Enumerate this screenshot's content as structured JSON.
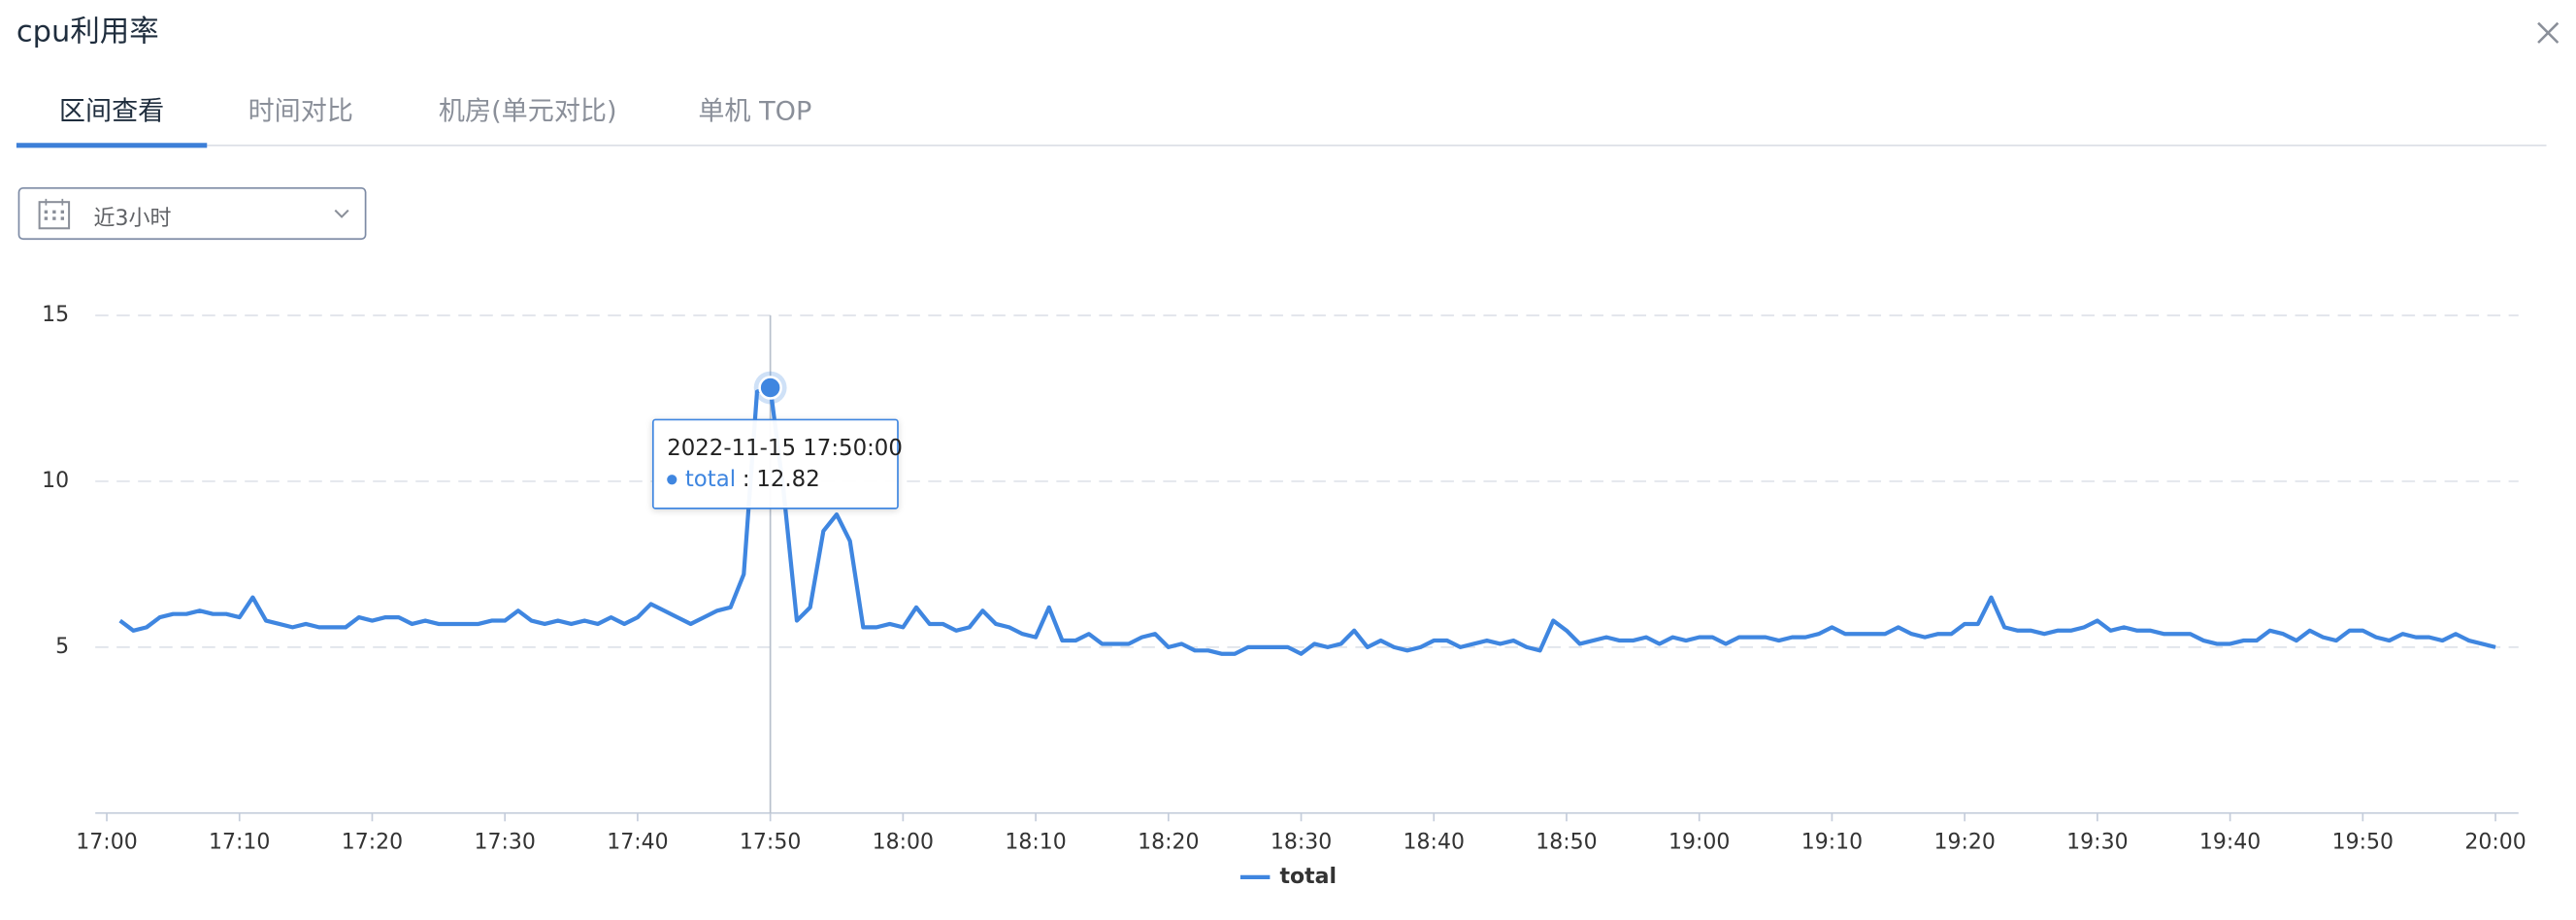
{
  "header": {
    "title": "cpu利用率"
  },
  "tabs": {
    "items": [
      "区间查看",
      "时间对比",
      "机房(单元对比)",
      "单机 TOP"
    ],
    "active": 0
  },
  "date_select": {
    "value": "近3小时"
  },
  "chart_data": {
    "type": "line",
    "categories": [
      "17:00",
      null,
      null,
      null,
      null,
      null,
      null,
      null,
      null,
      null,
      "17:10",
      null,
      null,
      null,
      null,
      null,
      null,
      null,
      null,
      null,
      "17:20",
      null,
      null,
      null,
      null,
      null,
      null,
      null,
      null,
      null,
      "17:30",
      null,
      null,
      null,
      null,
      null,
      null,
      null,
      null,
      null,
      "17:40",
      null,
      null,
      null,
      null,
      null,
      null,
      null,
      null,
      null,
      "17:50",
      null,
      null,
      null,
      null,
      null,
      null,
      null,
      null,
      null,
      "18:00",
      null,
      null,
      null,
      null,
      null,
      null,
      null,
      null,
      null,
      "18:10",
      null,
      null,
      null,
      null,
      null,
      null,
      null,
      null,
      null,
      "18:20",
      null,
      null,
      null,
      null,
      null,
      null,
      null,
      null,
      null,
      "18:30",
      null,
      null,
      null,
      null,
      null,
      null,
      null,
      null,
      null,
      "18:40",
      null,
      null,
      null,
      null,
      null,
      null,
      null,
      null,
      null,
      "18:50",
      null,
      null,
      null,
      null,
      null,
      null,
      null,
      null,
      null,
      "19:00",
      null,
      null,
      null,
      null,
      null,
      null,
      null,
      null,
      null,
      "19:10",
      null,
      null,
      null,
      null,
      null,
      null,
      null,
      null,
      null,
      "19:20",
      null,
      null,
      null,
      null,
      null,
      null,
      null,
      null,
      null,
      "19:30",
      null,
      null,
      null,
      null,
      null,
      null,
      null,
      null,
      null,
      "19:40",
      null,
      null,
      null,
      null,
      null,
      null,
      null,
      null,
      null,
      "19:50",
      null,
      null,
      null,
      null,
      null,
      null,
      null,
      null,
      null,
      "20:00"
    ],
    "series": [
      {
        "name": "total",
        "color": "#3f86e0",
        "values": [
          null,
          5.8,
          5.5,
          5.6,
          5.9,
          6.0,
          6.0,
          6.1,
          6.0,
          6.0,
          5.9,
          6.5,
          5.8,
          5.7,
          5.6,
          5.7,
          5.6,
          5.6,
          5.6,
          5.9,
          5.8,
          5.9,
          5.9,
          5.7,
          5.8,
          5.7,
          5.7,
          5.7,
          5.7,
          5.8,
          5.8,
          6.1,
          5.8,
          5.7,
          5.8,
          5.7,
          5.8,
          5.7,
          5.9,
          5.7,
          5.9,
          6.3,
          6.1,
          5.9,
          5.7,
          5.9,
          6.1,
          6.2,
          7.2,
          12.7,
          12.82,
          9.7,
          5.8,
          6.2,
          8.5,
          9.0,
          8.2,
          5.6,
          5.6,
          5.7,
          5.6,
          6.2,
          5.7,
          5.7,
          5.5,
          5.6,
          6.1,
          5.7,
          5.6,
          5.4,
          5.3,
          6.2,
          5.2,
          5.2,
          5.4,
          5.1,
          5.1,
          5.1,
          5.3,
          5.4,
          5.0,
          5.1,
          4.9,
          4.9,
          4.8,
          4.8,
          5.0,
          5.0,
          5.0,
          5.0,
          4.8,
          5.1,
          5.0,
          5.1,
          5.5,
          5.0,
          5.2,
          5.0,
          4.9,
          5.0,
          5.2,
          5.2,
          5.0,
          5.1,
          5.2,
          5.1,
          5.2,
          5.0,
          4.9,
          5.8,
          5.5,
          5.1,
          5.2,
          5.3,
          5.2,
          5.2,
          5.3,
          5.1,
          5.3,
          5.2,
          5.3,
          5.3,
          5.1,
          5.3,
          5.3,
          5.3,
          5.2,
          5.3,
          5.3,
          5.4,
          5.6,
          5.4,
          5.4,
          5.4,
          5.4,
          5.6,
          5.4,
          5.3,
          5.4,
          5.4,
          5.7,
          5.7,
          6.5,
          5.6,
          5.5,
          5.5,
          5.4,
          5.5,
          5.5,
          5.6,
          5.8,
          5.5,
          5.6,
          5.5,
          5.5,
          5.4,
          5.4,
          5.4,
          5.2,
          5.1,
          5.1,
          5.2,
          5.2,
          5.5,
          5.4,
          5.2,
          5.5,
          5.3,
          5.2,
          5.5,
          5.5,
          5.3,
          5.2,
          5.4,
          5.3,
          5.3,
          5.2,
          5.4,
          5.2,
          5.1,
          5.0
        ]
      }
    ],
    "ylim": [
      0,
      15
    ],
    "yticks": [
      5,
      10,
      15
    ],
    "grid": true,
    "grid_style": "dashed",
    "legend": "bottom",
    "tooltip": {
      "title": "2022-11-15 17:50:00",
      "separator": ":"
    }
  }
}
